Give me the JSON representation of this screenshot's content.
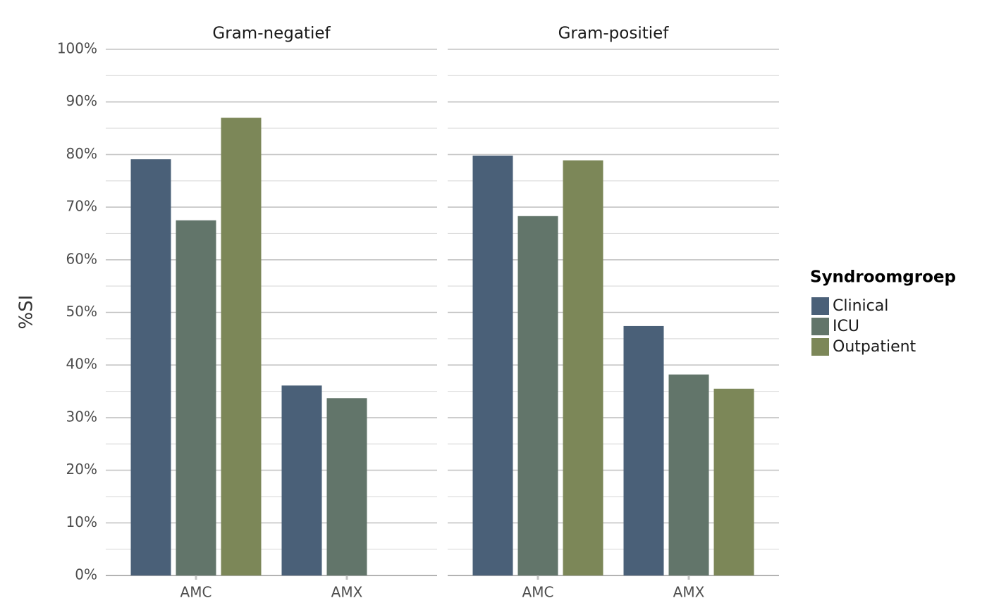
{
  "chart_data": {
    "type": "bar",
    "ylabel": "%SI",
    "xlabel": "",
    "ylim": [
      0,
      100
    ],
    "y_ticks": [
      "0%",
      "10%",
      "20%",
      "30%",
      "40%",
      "50%",
      "60%",
      "70%",
      "80%",
      "90%",
      "100%"
    ],
    "legend": {
      "title": "Syndroomgroep",
      "position": "right",
      "entries": [
        "Clinical",
        "ICU",
        "Outpatient"
      ]
    },
    "colors": {
      "Clinical": "#4a6078",
      "ICU": "#62756a",
      "Outpatient": "#7c8758",
      "grid_major": "#c4c4c4",
      "grid_minor": "#dedede"
    },
    "panels": [
      {
        "title": "Gram-negatief",
        "categories": [
          "AMC",
          "AMX"
        ],
        "series": [
          {
            "name": "Clinical",
            "values": [
              79.1,
              36.1
            ]
          },
          {
            "name": "ICU",
            "values": [
              67.5,
              33.7
            ]
          },
          {
            "name": "Outpatient",
            "values": [
              87.0,
              null
            ]
          }
        ]
      },
      {
        "title": "Gram-positief",
        "categories": [
          "AMC",
          "AMX"
        ],
        "series": [
          {
            "name": "Clinical",
            "values": [
              79.8,
              47.4
            ]
          },
          {
            "name": "ICU",
            "values": [
              68.3,
              38.2
            ]
          },
          {
            "name": "Outpatient",
            "values": [
              78.9,
              35.5
            ]
          }
        ]
      }
    ]
  }
}
